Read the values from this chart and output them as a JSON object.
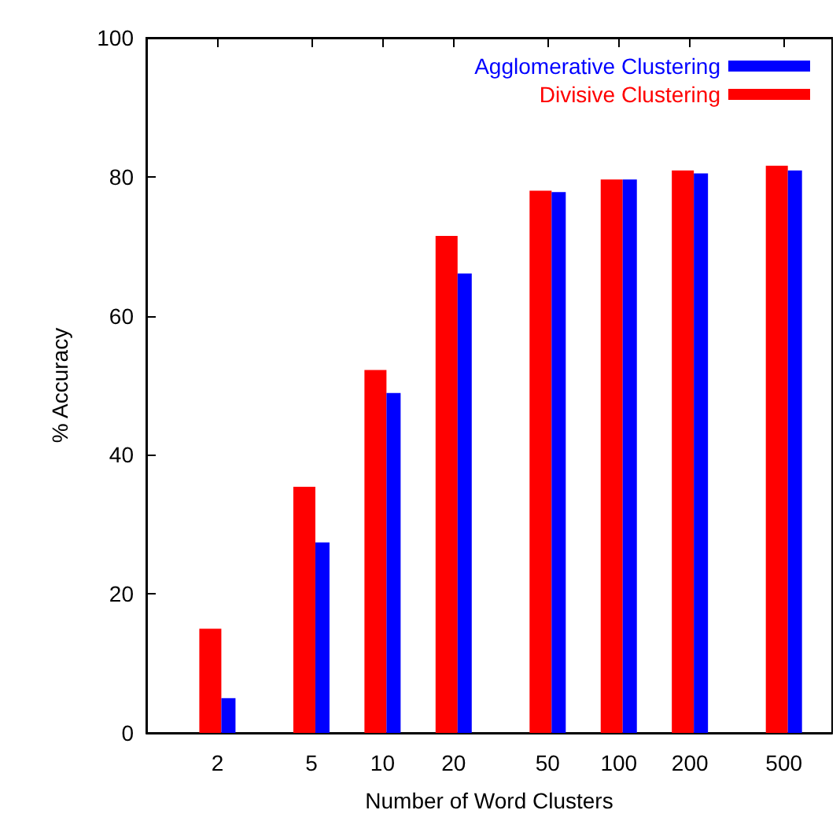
{
  "chart_data": {
    "type": "bar",
    "xlabel": "Number of Word Clusters",
    "ylabel": "% Accuracy",
    "x": [
      2,
      5,
      10,
      20,
      50,
      100,
      200,
      500
    ],
    "log": "x",
    "xlim": [
      1,
      800
    ],
    "xticks": [
      2,
      5,
      10,
      20,
      50,
      100,
      200,
      500
    ],
    "ylim": [
      0,
      100
    ],
    "yticks": [
      0,
      20,
      40,
      60,
      80,
      100
    ],
    "grid": false,
    "legend": "top right",
    "series": [
      {
        "name": "Divisive Clustering",
        "color": "#ff0000",
        "values": [
          15.0,
          35.4,
          52.2,
          71.5,
          78.0,
          79.6,
          80.9,
          81.6
        ]
      },
      {
        "name": "Agglomerative Clustering",
        "color": "#0000ff",
        "values": [
          5.0,
          27.4,
          48.9,
          66.1,
          77.8,
          79.6,
          80.5,
          80.9
        ]
      }
    ]
  }
}
